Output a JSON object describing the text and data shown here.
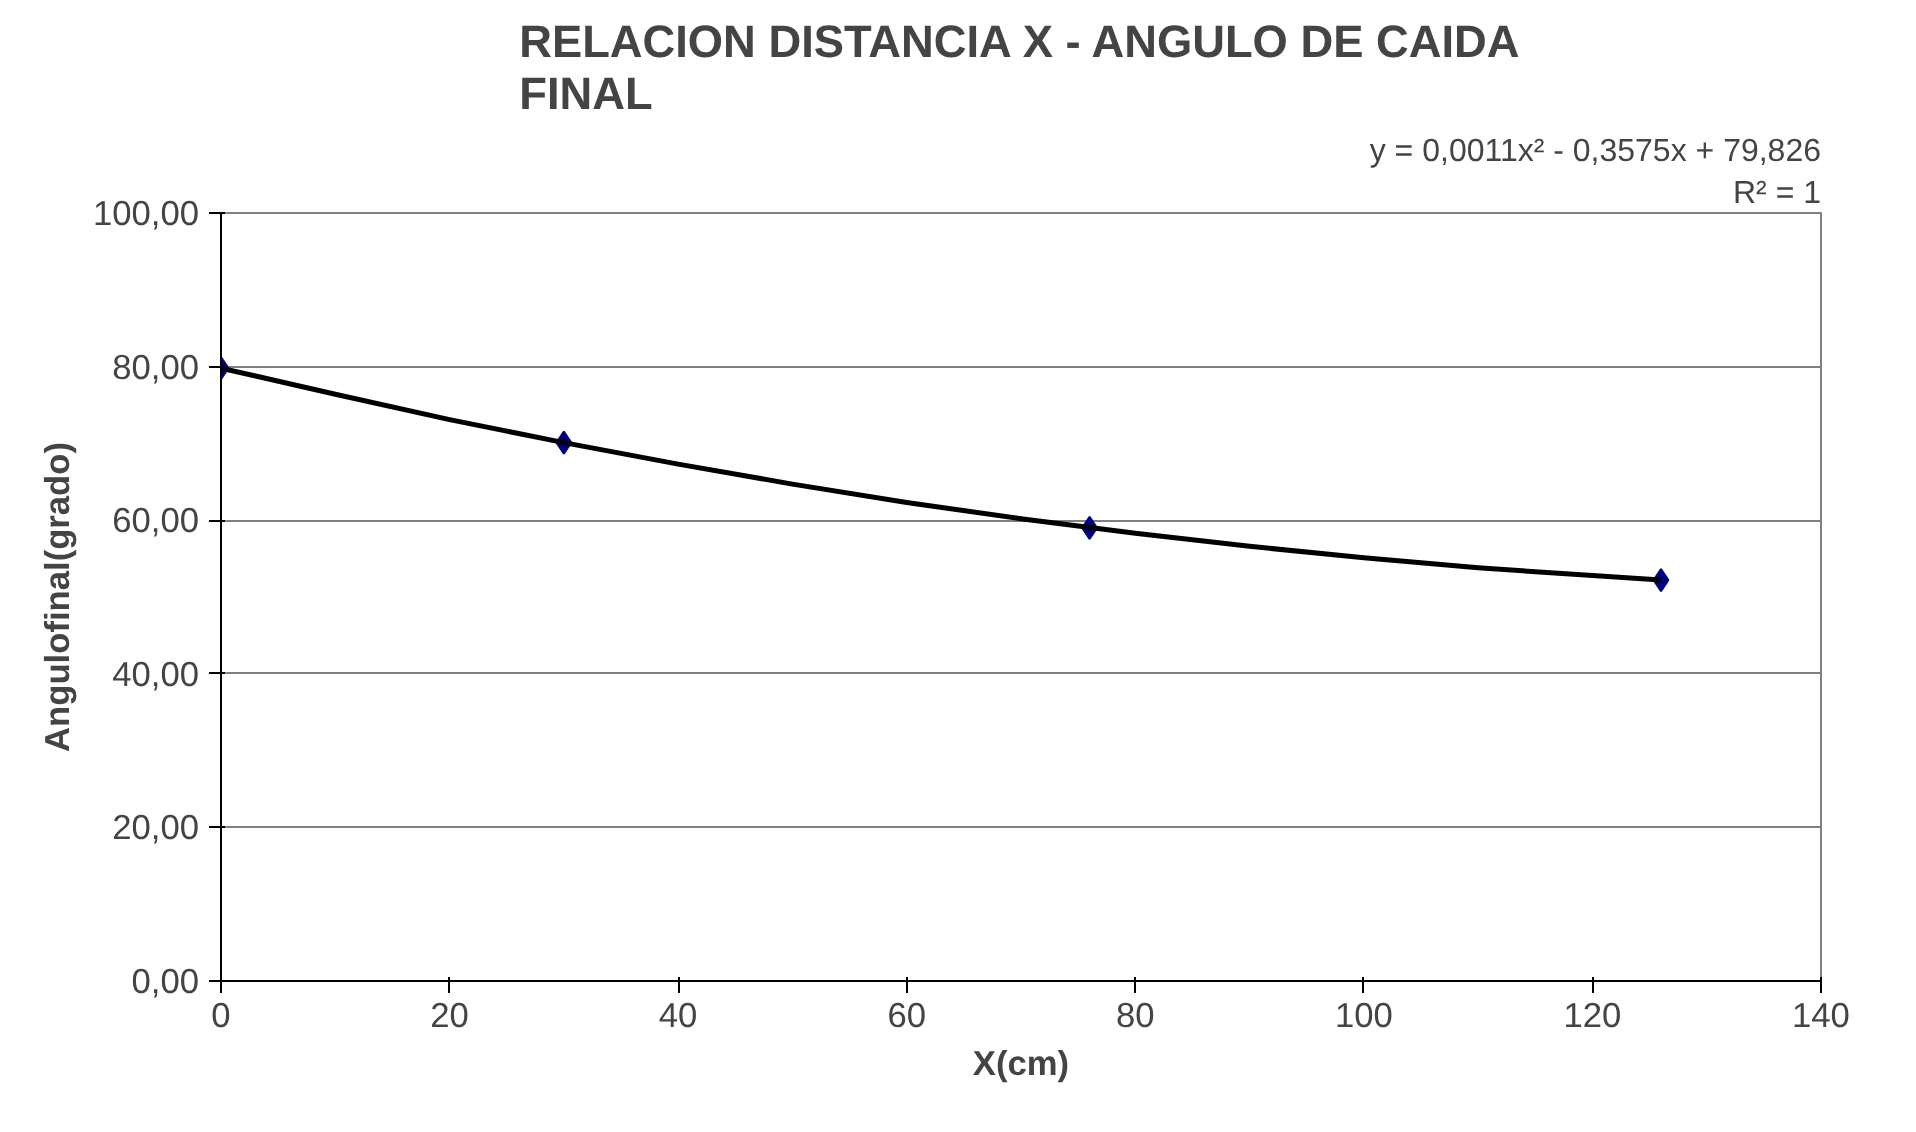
{
  "chart_data": {
    "type": "scatter",
    "title": "RELACION DISTANCIA X - ANGULO DE CAIDA FINAL",
    "xlabel": "X(cm)",
    "ylabel": "Angulofinal(grado)",
    "series": [
      {
        "color": "#000080",
        "marker": "diamond",
        "x": [
          0,
          30,
          76,
          126
        ],
        "values": [
          79.8,
          70.1,
          59.0,
          52.2
        ]
      },
      {
        "type": "line",
        "color": "#000000",
        "line_style": "solid",
        "x": [
          0,
          10,
          20,
          30,
          40,
          50,
          60,
          70,
          80,
          90,
          100,
          110,
          120,
          126
        ],
        "values": [
          79.8,
          76.4,
          73.1,
          70.1,
          67.3,
          64.7,
          62.3,
          60.2,
          58.3,
          56.6,
          55.1,
          53.8,
          52.8,
          52.2
        ]
      }
    ],
    "annotations": [
      "y = 0,0011x² - 0,3575x + 79,826",
      "R² = 1"
    ],
    "xlim": [
      0,
      140
    ],
    "xticks": [
      0,
      20,
      40,
      60,
      80,
      100,
      120,
      140
    ],
    "ylim": [
      0,
      100
    ],
    "yticks": [
      {
        "value": 0,
        "label": "0,00"
      },
      {
        "value": 20,
        "label": "20,00"
      },
      {
        "value": 40,
        "label": "40,00"
      },
      {
        "value": 60,
        "label": "60,00"
      },
      {
        "value": 80,
        "label": "80,00"
      },
      {
        "value": 100,
        "label": "100,00"
      }
    ],
    "grid": "y"
  }
}
